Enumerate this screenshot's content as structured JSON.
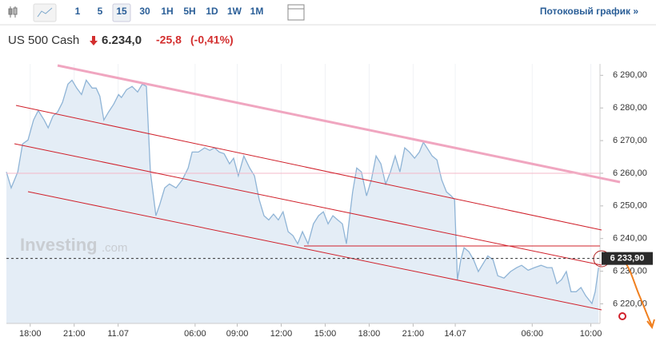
{
  "toolbar": {
    "intervals": [
      "1",
      "5",
      "15",
      "30",
      "1H",
      "5H",
      "1D",
      "1W",
      "1M"
    ],
    "stream_link": "Потоковый график »"
  },
  "header": {
    "instrument": "US 500 Cash",
    "price": "6.234,0",
    "change": "-25,8",
    "change_pct": "(-0,41%)"
  },
  "watermark": {
    "brand": "Investing",
    "suffix": ".com"
  },
  "chart_data": {
    "type": "line",
    "color": "#8fb4d6",
    "fill": "#e4edf6",
    "x": [
      0,
      1.3,
      3.1,
      4.4,
      5.9,
      7.4,
      8.7,
      10.3,
      11.4,
      12.7,
      14.0,
      15.3,
      16.8,
      17.9,
      19.2,
      20.5,
      21.8,
      23.4,
      24.5,
      25.5,
      26.6,
      27.9,
      29.3,
      30.6,
      31.4,
      32.8,
      34.3,
      35.8,
      37.1,
      38.2,
      39.3,
      40.8,
      41.9,
      43.2,
      44.5,
      46.3,
      48.0,
      49.6,
      50.7,
      52.4,
      54.1,
      55.5,
      56.8,
      58.1,
      59.4,
      60.9,
      62.0,
      63.3,
      64.8,
      66.4,
      67.7,
      69.0,
      70.3,
      71.6,
      72.9,
      74.2,
      75.5,
      76.9,
      78.2,
      79.5,
      80.8,
      82.3,
      83.8,
      85.2,
      86.5,
      87.8,
      89.1,
      90.4,
      91.7,
      92.8,
      93.7,
      94.5,
      95.6,
      96.9,
      98.3,
      99.6,
      100.9,
      102.2,
      103.5,
      104.8,
      106.1,
      107.4,
      108.7,
      110.0,
      111.4,
      112.7,
      113.8,
      114.8,
      116.2,
      117.5,
      118.8,
      120.1,
      121.4,
      122.3,
      123.1,
      124.0,
      124.9,
      126.2,
      127.5,
      128.8,
      130.1,
      131.4,
      132.8,
      134.1,
      135.8,
      137.6,
      139.3,
      140.6,
      142.4,
      144.1,
      145.9,
      147.6,
      148.9,
      150.2,
      151.5,
      152.8,
      154.1,
      155.5,
      156.8,
      158.1,
      159.8,
      160.7,
      161.6
    ],
    "values": [
      6260.4,
      6255.5,
      6260.4,
      6269.0,
      6270.2,
      6276.3,
      6279.2,
      6276.3,
      6273.9,
      6277.5,
      6278.8,
      6281.7,
      6287.3,
      6288.5,
      6286.1,
      6284.1,
      6288.5,
      6286.1,
      6286.1,
      6283.6,
      6276.3,
      6278.8,
      6281.2,
      6284.1,
      6283.2,
      6285.6,
      6286.6,
      6284.9,
      6287.3,
      6286.6,
      6260.4,
      6247.0,
      6250.6,
      6255.5,
      6256.7,
      6255.5,
      6258.0,
      6261.6,
      6266.5,
      6266.5,
      6267.8,
      6267.0,
      6267.8,
      6266.5,
      6266.0,
      6262.9,
      6264.6,
      6259.2,
      6265.3,
      6261.6,
      6259.2,
      6251.9,
      6247.0,
      6245.7,
      6247.5,
      6245.7,
      6248.2,
      6242.1,
      6240.9,
      6238.4,
      6242.1,
      6238.4,
      6244.5,
      6247.0,
      6248.2,
      6244.5,
      6247.0,
      6245.7,
      6244.5,
      6238.4,
      6247.0,
      6254.3,
      6261.6,
      6260.4,
      6253.1,
      6258.0,
      6265.3,
      6262.9,
      6256.7,
      6260.4,
      6265.3,
      6260.4,
      6267.8,
      6266.5,
      6264.6,
      6266.5,
      6269.5,
      6267.8,
      6265.3,
      6264.1,
      6258.0,
      6254.3,
      6253.1,
      6251.9,
      6227.4,
      6233.5,
      6237.2,
      6236.0,
      6233.5,
      6229.9,
      6232.3,
      6234.7,
      6233.5,
      6228.6,
      6227.9,
      6229.9,
      6231.1,
      6231.8,
      6230.3,
      6231.1,
      6231.8,
      6231.1,
      6231.1,
      6226.2,
      6227.4,
      6229.9,
      6223.7,
      6223.7,
      6225.0,
      6222.5,
      6220.1,
      6223.7,
      6231.1
    ],
    "xlim": [
      0,
      162
    ],
    "ylim": [
      6214,
      6293.5
    ],
    "xticks": [
      {
        "value": 6.5,
        "label": "18:00"
      },
      {
        "value": 18.5,
        "label": "21:00"
      },
      {
        "value": 30.5,
        "label": "11.07"
      },
      {
        "value": 51.5,
        "label": "06:00"
      },
      {
        "value": 63,
        "label": "09:00"
      },
      {
        "value": 75,
        "label": "12:00"
      },
      {
        "value": 87,
        "label": "15:00"
      },
      {
        "value": 99,
        "label": "18:00"
      },
      {
        "value": 111,
        "label": "21:00"
      },
      {
        "value": 122.5,
        "label": "14.07"
      },
      {
        "value": 143.5,
        "label": "06:00"
      },
      {
        "value": 159.5,
        "label": "10:00"
      }
    ],
    "yticks": [
      {
        "value": 6290,
        "label": "6 290,00"
      },
      {
        "value": 6280,
        "label": "6 280,00"
      },
      {
        "value": 6270,
        "label": "6 270,00"
      },
      {
        "value": 6260,
        "label": "6 260,00"
      },
      {
        "value": 6250,
        "label": "6 250,00"
      },
      {
        "value": 6240,
        "label": "6 240,00"
      },
      {
        "value": 6230,
        "label": "6 230,00"
      },
      {
        "value": 6220,
        "label": "6 220,00"
      }
    ],
    "last_price": {
      "value": 6233.9,
      "label": "6 233,90"
    }
  }
}
